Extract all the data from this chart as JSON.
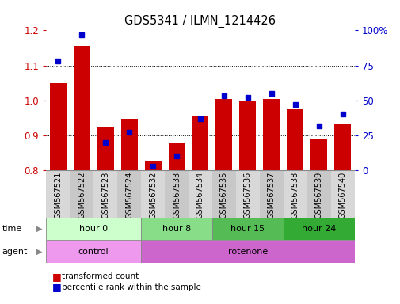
{
  "title": "GDS5341 / ILMN_1214426",
  "samples": [
    "GSM567521",
    "GSM567522",
    "GSM567523",
    "GSM567524",
    "GSM567532",
    "GSM567533",
    "GSM567534",
    "GSM567535",
    "GSM567536",
    "GSM567537",
    "GSM567538",
    "GSM567539",
    "GSM567540"
  ],
  "red_values": [
    1.05,
    1.155,
    0.923,
    0.948,
    0.825,
    0.878,
    0.957,
    1.005,
    1.0,
    1.005,
    0.975,
    0.89,
    0.932
  ],
  "blue_values_pct": [
    78,
    97,
    20,
    27,
    3,
    10,
    37,
    53,
    52,
    55,
    47,
    32,
    40
  ],
  "ylim_left": [
    0.8,
    1.2
  ],
  "ylim_right": [
    0,
    100
  ],
  "yticks_left": [
    0.8,
    0.9,
    1.0,
    1.1,
    1.2
  ],
  "yticks_right": [
    0,
    25,
    50,
    75,
    100
  ],
  "bar_color": "#cc0000",
  "dot_color": "#0000cc",
  "background_color": "#ffffff",
  "time_groups": [
    {
      "label": "hour 0",
      "start": 0,
      "end": 4,
      "color": "#ccffcc"
    },
    {
      "label": "hour 8",
      "start": 4,
      "end": 7,
      "color": "#88dd88"
    },
    {
      "label": "hour 15",
      "start": 7,
      "end": 10,
      "color": "#55bb55"
    },
    {
      "label": "hour 24",
      "start": 10,
      "end": 13,
      "color": "#33aa33"
    }
  ],
  "agent_groups": [
    {
      "label": "control",
      "start": 0,
      "end": 4,
      "color": "#ee99ee"
    },
    {
      "label": "rotenone",
      "start": 4,
      "end": 13,
      "color": "#cc66cc"
    }
  ],
  "legend_red": "transformed count",
  "legend_blue": "percentile rank within the sample",
  "tick_bg_even": "#d8d8d8",
  "tick_bg_odd": "#c8c8c8"
}
